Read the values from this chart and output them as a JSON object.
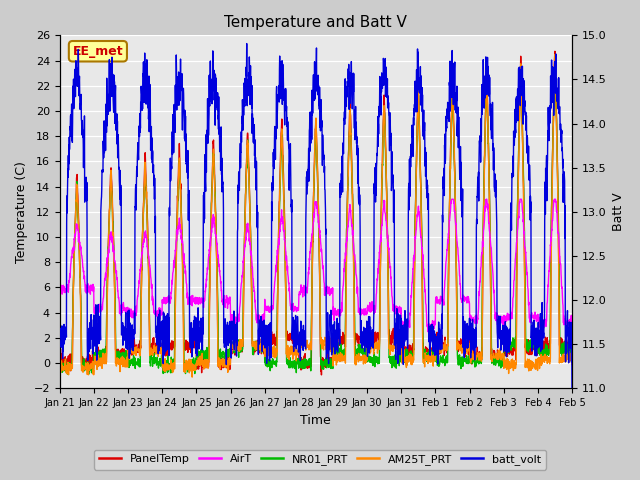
{
  "title": "Temperature and Batt V",
  "xlabel": "Time",
  "ylabel_left": "Temperature (C)",
  "ylabel_right": "Batt V",
  "ylim_left": [
    -2,
    26
  ],
  "ylim_right": [
    11.0,
    15.0
  ],
  "yticks_left": [
    -2,
    0,
    2,
    4,
    6,
    8,
    10,
    12,
    14,
    16,
    18,
    20,
    22,
    24,
    26
  ],
  "yticks_right": [
    11.0,
    11.5,
    12.0,
    12.5,
    13.0,
    13.5,
    14.0,
    14.5,
    15.0
  ],
  "annotation_text": "EE_met",
  "annotation_color": "#cc0000",
  "annotation_bg": "#ffff99",
  "annotation_border": "#aa7700",
  "x_tick_labels": [
    "Jan 21",
    "Jan 22",
    "Jan 23",
    "Jan 24",
    "Jan 25",
    "Jan 26",
    "Jan 27",
    "Jan 28",
    "Jan 29",
    "Jan 30",
    "Jan 31",
    "Feb 1",
    "Feb 2",
    "Feb 3",
    "Feb 4",
    "Feb 5"
  ],
  "fig_bg": "#cccccc",
  "plot_bg": "#e8e8e8",
  "grid_color": "#ffffff",
  "legend": [
    {
      "label": "PanelTemp",
      "color": "#dd0000",
      "lw": 1.0
    },
    {
      "label": "AirT",
      "color": "#ff00ff",
      "lw": 1.0
    },
    {
      "label": "NR01_PRT",
      "color": "#00bb00",
      "lw": 1.0
    },
    {
      "label": "AM25T_PRT",
      "color": "#ff8800",
      "lw": 1.0
    },
    {
      "label": "batt_volt",
      "color": "#0000dd",
      "lw": 1.0
    }
  ],
  "n_days": 15,
  "pts_per_day": 144
}
